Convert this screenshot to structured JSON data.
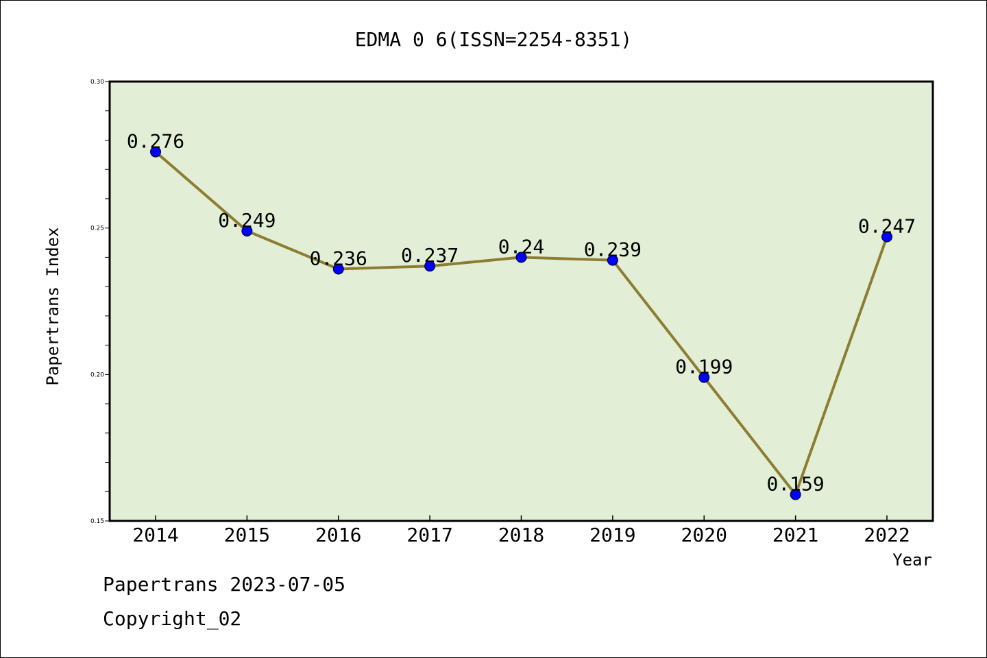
{
  "chart_data": {
    "type": "line",
    "title": "EDMA 0 6(ISSN=2254-8351)",
    "xlabel": "Year",
    "ylabel": "Papertrans Index",
    "categories": [
      "2014",
      "2015",
      "2016",
      "2017",
      "2018",
      "2019",
      "2020",
      "2021",
      "2022"
    ],
    "series": [
      {
        "values": [
          0.276,
          0.249,
          0.236,
          0.237,
          0.24,
          0.239,
          0.199,
          0.159,
          0.247
        ],
        "labels": [
          "0.276",
          "0.249",
          "0.236",
          "0.237",
          "0.24",
          "0.239",
          "0.199",
          "0.159",
          "0.247"
        ]
      }
    ],
    "ylim": [
      0.15,
      0.3
    ],
    "yticks": [
      "0.15",
      "0.20",
      "0.25",
      "0.30"
    ],
    "grid": false,
    "legend": "none",
    "colors": {
      "plot_background": "#e2efd6",
      "line": "#8c7d32",
      "marker": "#0000ff"
    }
  },
  "footer": {
    "date_line": "Papertrans 2023-07-05",
    "copyright": "Copyright_02"
  }
}
